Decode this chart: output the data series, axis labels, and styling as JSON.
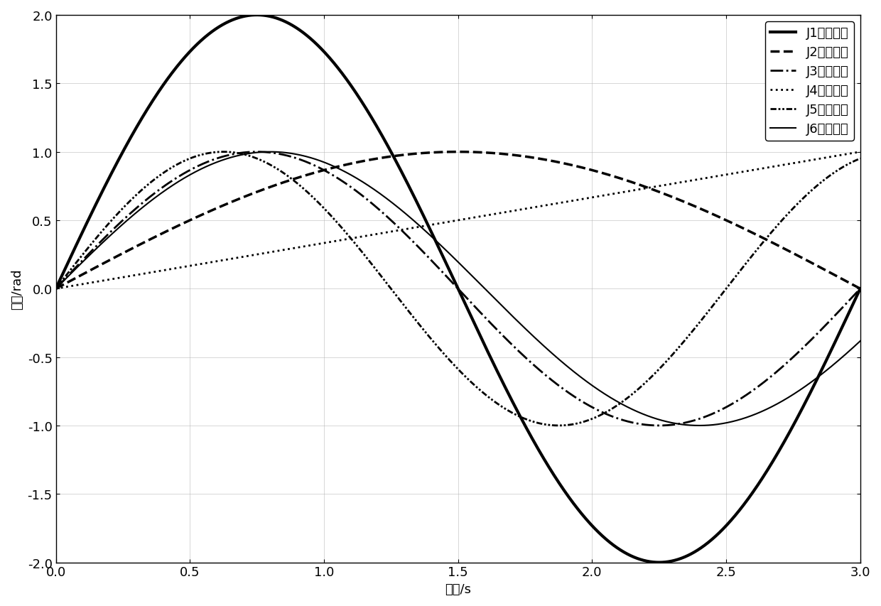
{
  "title": "",
  "xlabel": "时间/s",
  "ylabel": "角度/rad",
  "xlim": [
    0,
    3
  ],
  "ylim": [
    -2,
    2
  ],
  "xticks": [
    0,
    0.5,
    1,
    1.5,
    2,
    2.5,
    3
  ],
  "yticks": [
    -2,
    -1.5,
    -1,
    -0.5,
    0,
    0.5,
    1,
    1.5,
    2
  ],
  "lines": [
    {
      "label": "J1关节角度",
      "linestyle": "solid",
      "linewidth": 3.0,
      "formula": "J1"
    },
    {
      "label": "J2关节角度",
      "linestyle": "dashed",
      "linewidth": 2.5,
      "formula": "J2"
    },
    {
      "label": "J3关节角度",
      "linestyle": "dashdot",
      "linewidth": 2.0,
      "formula": "J3"
    },
    {
      "label": "J4关节角度",
      "linestyle": "dotted",
      "linewidth": 2.0,
      "formula": "J4"
    },
    {
      "label": "J5关节角度",
      "linestyle": "dashdotdot",
      "linewidth": 2.0,
      "formula": "J5"
    },
    {
      "label": "J6关节角度",
      "linestyle": "solid",
      "linewidth": 1.5,
      "formula": "J6"
    }
  ],
  "background_color": "#ffffff",
  "legend_loc": "upper right",
  "font_size": 13
}
